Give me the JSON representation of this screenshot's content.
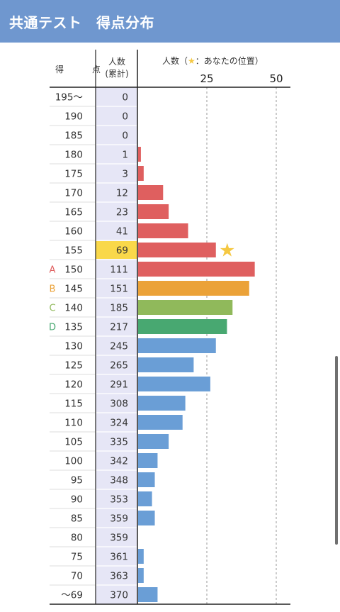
{
  "header": {
    "title": "共通テスト　得点分布"
  },
  "table_header": {
    "score": "得　点",
    "count_line1": "人数",
    "count_line2": "(累計)",
    "legend": "人数（",
    "legend_star": "★",
    "legend_rest": "：あなたの位置）"
  },
  "colors": {
    "header": "#6f97cf",
    "cumulative_column": "#e6e6f6",
    "highlight": "#f9d84a",
    "star": "#f5c842",
    "red": "#df5f5f",
    "orange": "#eba238",
    "light_green": "#90b95b",
    "green": "#48a871",
    "blue": "#6a9ed6"
  },
  "chart_data": {
    "type": "bar",
    "orientation": "horizontal",
    "categories": [
      "195〜",
      "190",
      "185",
      "180",
      "175",
      "170",
      "165",
      "160",
      "155",
      "150",
      "145",
      "140",
      "135",
      "130",
      "125",
      "120",
      "115",
      "110",
      "105",
      "100",
      "95",
      "90",
      "85",
      "80",
      "75",
      "70",
      "〜69"
    ],
    "grade_labels": [
      {
        "category": "150",
        "grade": "A",
        "color": "#df5f5f"
      },
      {
        "category": "145",
        "grade": "B",
        "color": "#eba238"
      },
      {
        "category": "140",
        "grade": "C",
        "color": "#90b95b"
      },
      {
        "category": "135",
        "grade": "D",
        "color": "#48a871"
      }
    ],
    "cumulative": [
      0,
      0,
      0,
      1,
      3,
      12,
      23,
      41,
      69,
      111,
      151,
      185,
      217,
      245,
      265,
      291,
      308,
      324,
      335,
      342,
      348,
      353,
      359,
      359,
      361,
      363,
      370
    ],
    "values": [
      0,
      0,
      0,
      1,
      2,
      9,
      11,
      18,
      28,
      42,
      40,
      34,
      32,
      28,
      20,
      26,
      17,
      16,
      11,
      7,
      6,
      5,
      6,
      0,
      2,
      2,
      7
    ],
    "bar_colors": [
      "red",
      "red",
      "red",
      "red",
      "red",
      "red",
      "red",
      "red",
      "red",
      "red",
      "orange",
      "light_green",
      "green",
      "blue",
      "blue",
      "blue",
      "blue",
      "blue",
      "blue",
      "blue",
      "blue",
      "blue",
      "blue",
      "blue",
      "blue",
      "blue",
      "blue"
    ],
    "xaxis_ticks": [
      25,
      50
    ],
    "xlim": [
      0,
      50
    ],
    "grid": "dashed vertical at ticks",
    "your_position": "155",
    "your_position_marker": "★"
  }
}
